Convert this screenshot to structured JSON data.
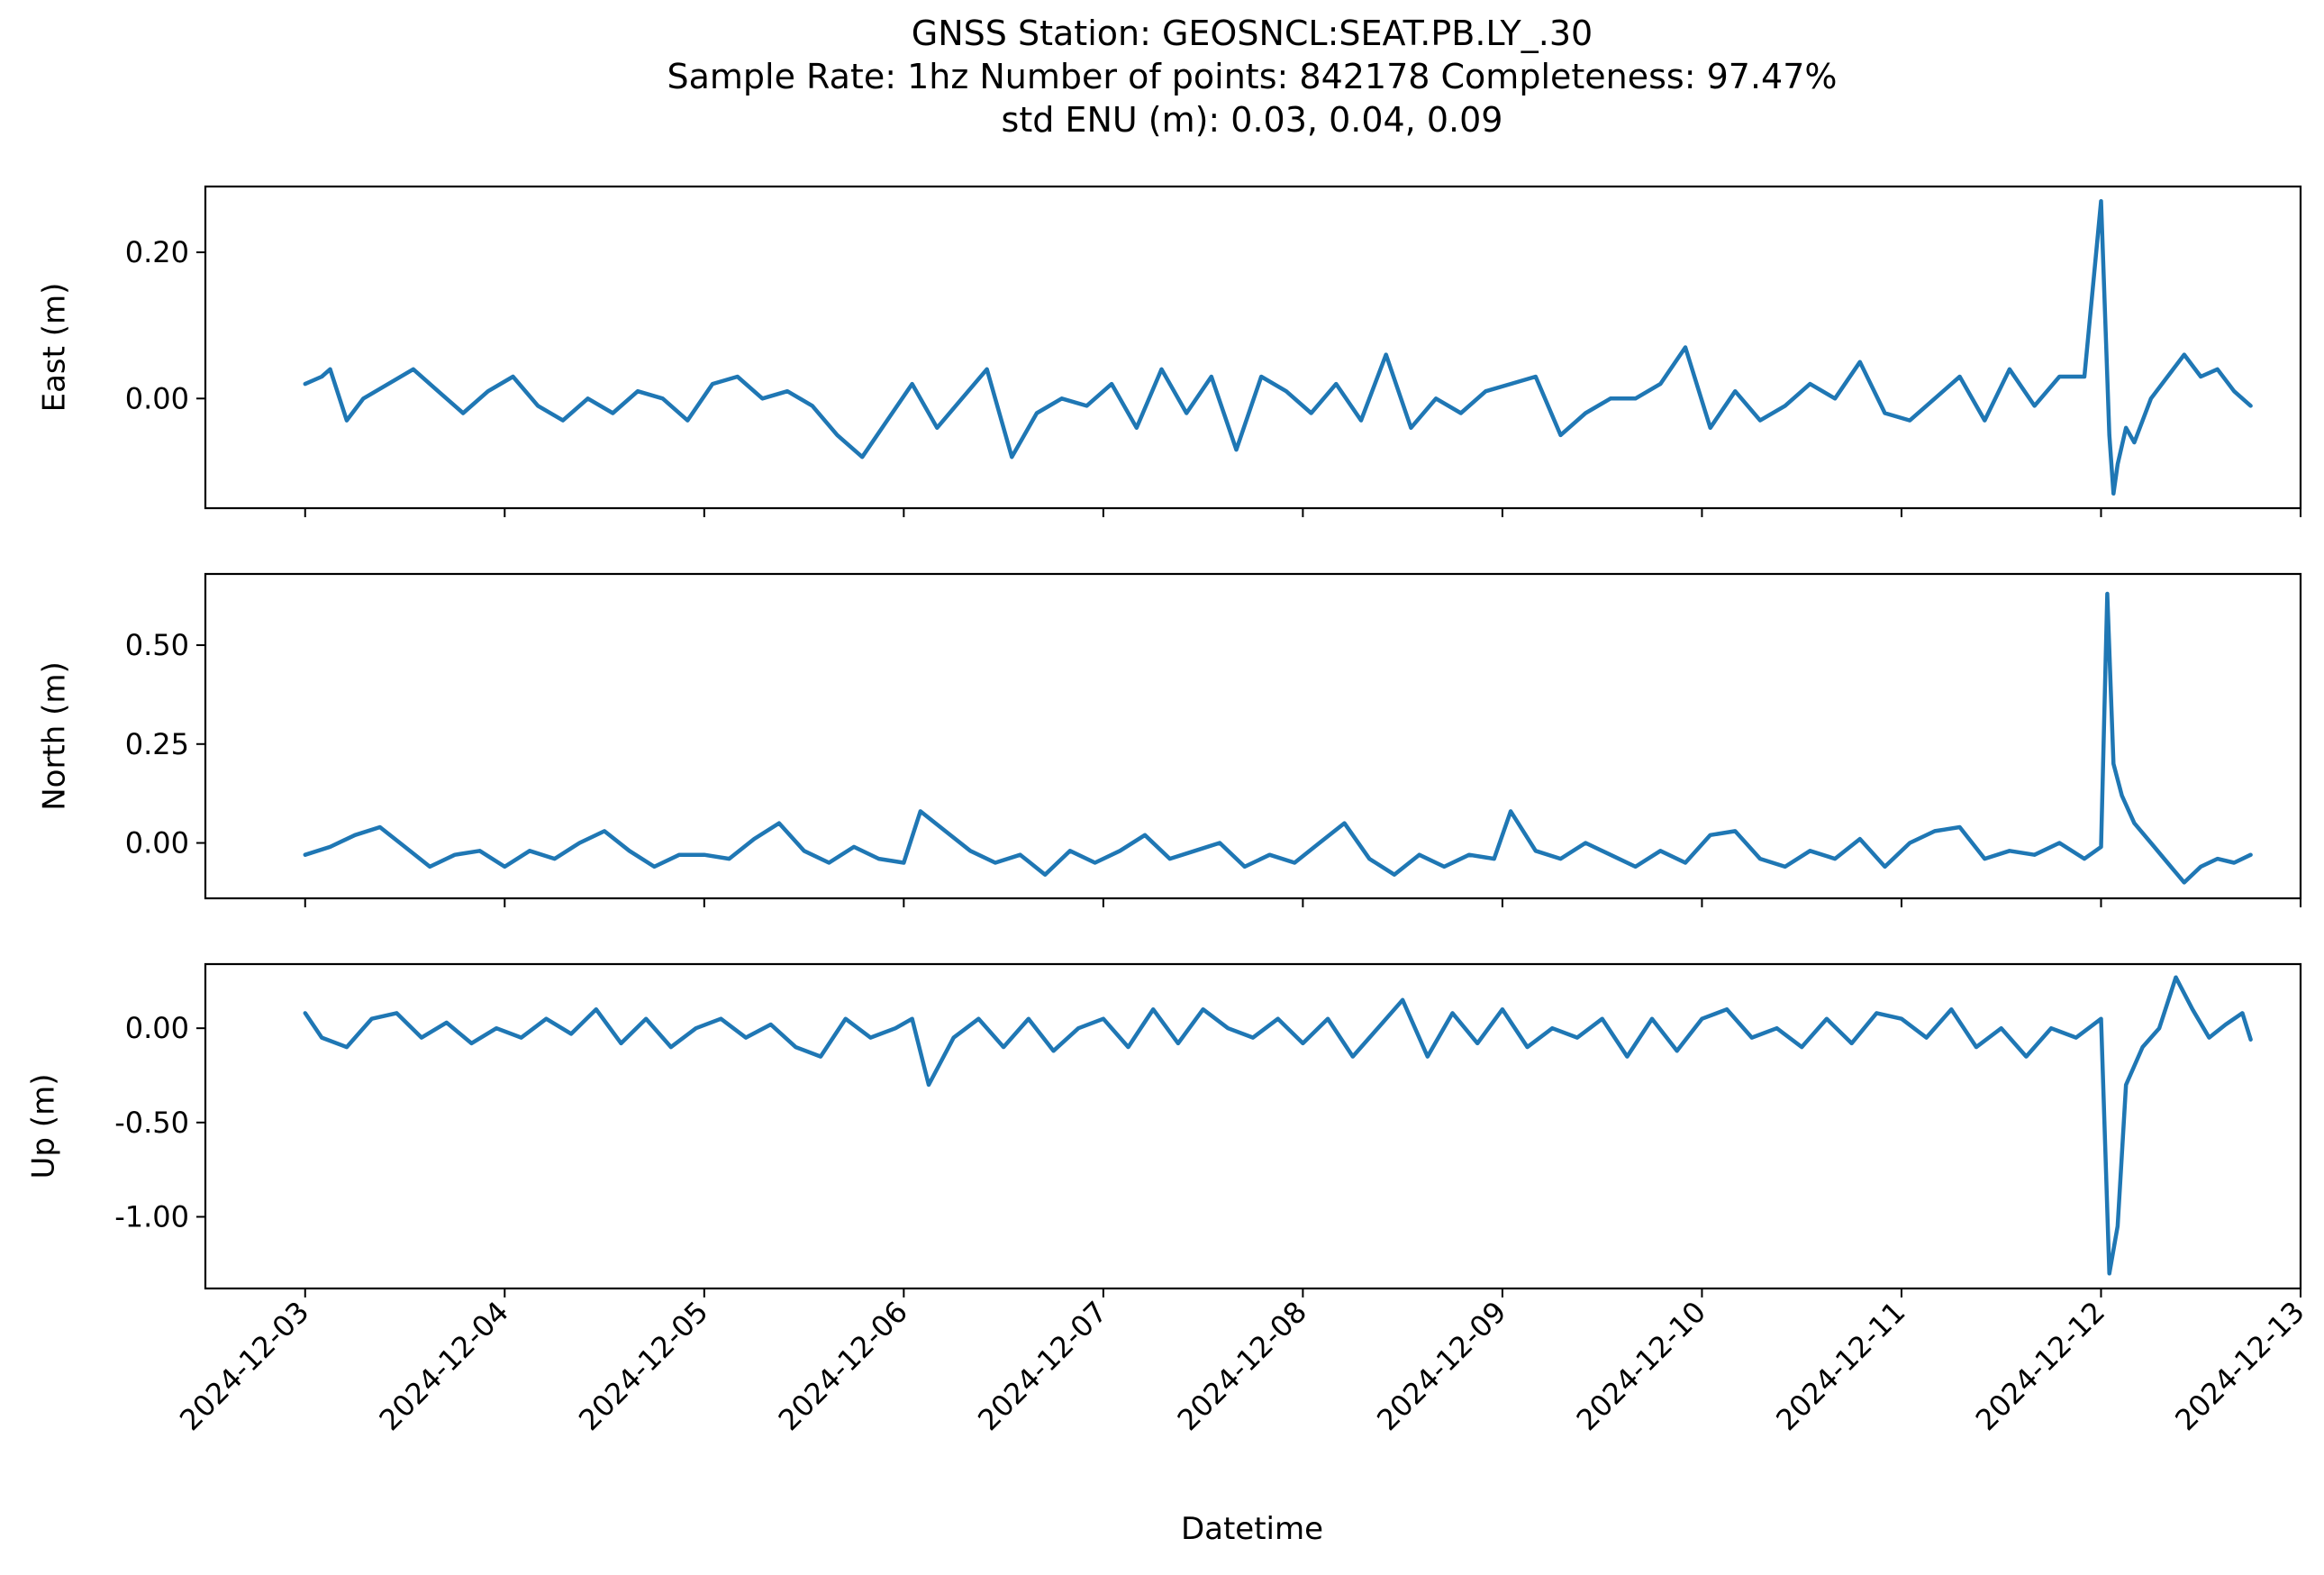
{
  "figure": {
    "title_lines": [
      "GNSS Station: GEOSNCL:SEAT.PB.LY_.30",
      "Sample Rate: 1hz   Number of points: 842178    Completeness:  97.47%",
      "std ENU (m):  0.03, 0.04, 0.09"
    ],
    "xlabel": "Datetime",
    "line_color": "#1f77b4"
  },
  "chart_data": [
    {
      "type": "line",
      "ylabel": "East (m)",
      "xlim": [
        "2024-12-02 12:00",
        "2024-12-13 00:00"
      ],
      "ylim": [
        -0.15,
        0.29
      ],
      "yticks": [
        0.0,
        0.2
      ],
      "ytick_labels": [
        "0.00",
        "0.20"
      ],
      "xticks": [
        "2024-12-03",
        "2024-12-04",
        "2024-12-05",
        "2024-12-06",
        "2024-12-07",
        "2024-12-08",
        "2024-12-09",
        "2024-12-10",
        "2024-12-11",
        "2024-12-12",
        "2024-12-13"
      ],
      "xtick_labels": [],
      "grid": false,
      "series": [
        {
          "x": [
            "2024-12-03 00:00",
            "2024-12-03 02:00",
            "2024-12-03 03:00",
            "2024-12-03 05:00",
            "2024-12-03 07:00",
            "2024-12-03 10:00",
            "2024-12-03 13:00",
            "2024-12-03 16:00",
            "2024-12-03 19:00",
            "2024-12-03 22:00",
            "2024-12-04 01:00",
            "2024-12-04 04:00",
            "2024-12-04 07:00",
            "2024-12-04 10:00",
            "2024-12-04 13:00",
            "2024-12-04 16:00",
            "2024-12-04 19:00",
            "2024-12-04 22:00",
            "2024-12-05 01:00",
            "2024-12-05 04:00",
            "2024-12-05 07:00",
            "2024-12-05 10:00",
            "2024-12-05 13:00",
            "2024-12-05 16:00",
            "2024-12-05 19:00",
            "2024-12-05 22:00",
            "2024-12-06 01:00",
            "2024-12-06 04:00",
            "2024-12-06 07:00",
            "2024-12-06 10:00",
            "2024-12-06 13:00",
            "2024-12-06 16:00",
            "2024-12-06 19:00",
            "2024-12-06 22:00",
            "2024-12-07 01:00",
            "2024-12-07 04:00",
            "2024-12-07 07:00",
            "2024-12-07 10:00",
            "2024-12-07 13:00",
            "2024-12-07 16:00",
            "2024-12-07 19:00",
            "2024-12-07 22:00",
            "2024-12-08 01:00",
            "2024-12-08 04:00",
            "2024-12-08 07:00",
            "2024-12-08 10:00",
            "2024-12-08 13:00",
            "2024-12-08 16:00",
            "2024-12-08 19:00",
            "2024-12-08 22:00",
            "2024-12-09 01:00",
            "2024-12-09 04:00",
            "2024-12-09 07:00",
            "2024-12-09 10:00",
            "2024-12-09 13:00",
            "2024-12-09 16:00",
            "2024-12-09 19:00",
            "2024-12-09 22:00",
            "2024-12-10 01:00",
            "2024-12-10 04:00",
            "2024-12-10 07:00",
            "2024-12-10 10:00",
            "2024-12-10 13:00",
            "2024-12-10 16:00",
            "2024-12-10 19:00",
            "2024-12-10 22:00",
            "2024-12-11 01:00",
            "2024-12-11 04:00",
            "2024-12-11 07:00",
            "2024-12-11 10:00",
            "2024-12-11 13:00",
            "2024-12-11 16:00",
            "2024-12-11 19:00",
            "2024-12-11 22:00",
            "2024-12-12 00:00",
            "2024-12-12 01:00",
            "2024-12-12 01:30",
            "2024-12-12 02:00",
            "2024-12-12 03:00",
            "2024-12-12 04:00",
            "2024-12-12 06:00",
            "2024-12-12 08:00",
            "2024-12-12 10:00",
            "2024-12-12 12:00",
            "2024-12-12 14:00",
            "2024-12-12 16:00",
            "2024-12-12 18:00"
          ],
          "y": [
            0.02,
            0.03,
            0.04,
            -0.03,
            0.0,
            0.02,
            0.04,
            0.01,
            -0.02,
            0.01,
            0.03,
            -0.01,
            -0.03,
            0.0,
            -0.02,
            0.01,
            0.0,
            -0.03,
            0.02,
            0.03,
            0.0,
            0.01,
            -0.01,
            -0.05,
            -0.08,
            -0.03,
            0.02,
            -0.04,
            0.0,
            0.04,
            -0.08,
            -0.02,
            0.0,
            -0.01,
            0.02,
            -0.04,
            0.04,
            -0.02,
            0.03,
            -0.07,
            0.03,
            0.01,
            -0.02,
            0.02,
            -0.03,
            0.06,
            -0.04,
            0.0,
            -0.02,
            0.01,
            0.02,
            0.03,
            -0.05,
            -0.02,
            0.0,
            0.0,
            0.02,
            0.07,
            -0.04,
            0.01,
            -0.03,
            -0.01,
            0.02,
            0.0,
            0.05,
            -0.02,
            -0.03,
            0.0,
            0.03,
            -0.03,
            0.04,
            -0.01,
            0.03,
            0.03,
            0.27,
            -0.05,
            -0.13,
            -0.09,
            -0.04,
            -0.06,
            0.0,
            0.03,
            0.06,
            0.03,
            0.04,
            0.01,
            -0.01
          ],
          "color": "#1f77b4"
        }
      ]
    },
    {
      "type": "line",
      "ylabel": "North (m)",
      "xlim": [
        "2024-12-02 12:00",
        "2024-12-13 00:00"
      ],
      "ylim": [
        -0.14,
        0.68
      ],
      "yticks": [
        0.0,
        0.25,
        0.5
      ],
      "ytick_labels": [
        "0.00",
        "0.25",
        "0.50"
      ],
      "xticks": [
        "2024-12-03",
        "2024-12-04",
        "2024-12-05",
        "2024-12-06",
        "2024-12-07",
        "2024-12-08",
        "2024-12-09",
        "2024-12-10",
        "2024-12-11",
        "2024-12-12",
        "2024-12-13"
      ],
      "xtick_labels": [],
      "grid": false,
      "series": [
        {
          "x": [
            "2024-12-03 00:00",
            "2024-12-03 03:00",
            "2024-12-03 06:00",
            "2024-12-03 09:00",
            "2024-12-03 12:00",
            "2024-12-03 15:00",
            "2024-12-03 18:00",
            "2024-12-03 21:00",
            "2024-12-04 00:00",
            "2024-12-04 03:00",
            "2024-12-04 06:00",
            "2024-12-04 09:00",
            "2024-12-04 12:00",
            "2024-12-04 15:00",
            "2024-12-04 18:00",
            "2024-12-04 21:00",
            "2024-12-05 00:00",
            "2024-12-05 03:00",
            "2024-12-05 06:00",
            "2024-12-05 09:00",
            "2024-12-05 12:00",
            "2024-12-05 15:00",
            "2024-12-05 18:00",
            "2024-12-05 21:00",
            "2024-12-06 00:00",
            "2024-12-06 02:00",
            "2024-12-06 05:00",
            "2024-12-06 08:00",
            "2024-12-06 11:00",
            "2024-12-06 14:00",
            "2024-12-06 17:00",
            "2024-12-06 20:00",
            "2024-12-06 23:00",
            "2024-12-07 02:00",
            "2024-12-07 05:00",
            "2024-12-07 08:00",
            "2024-12-07 11:00",
            "2024-12-07 14:00",
            "2024-12-07 17:00",
            "2024-12-07 20:00",
            "2024-12-07 23:00",
            "2024-12-08 02:00",
            "2024-12-08 05:00",
            "2024-12-08 08:00",
            "2024-12-08 11:00",
            "2024-12-08 14:00",
            "2024-12-08 17:00",
            "2024-12-08 20:00",
            "2024-12-08 23:00",
            "2024-12-09 01:00",
            "2024-12-09 04:00",
            "2024-12-09 07:00",
            "2024-12-09 10:00",
            "2024-12-09 13:00",
            "2024-12-09 16:00",
            "2024-12-09 19:00",
            "2024-12-09 22:00",
            "2024-12-10 01:00",
            "2024-12-10 04:00",
            "2024-12-10 07:00",
            "2024-12-10 10:00",
            "2024-12-10 13:00",
            "2024-12-10 16:00",
            "2024-12-10 19:00",
            "2024-12-10 22:00",
            "2024-12-11 01:00",
            "2024-12-11 04:00",
            "2024-12-11 07:00",
            "2024-12-11 10:00",
            "2024-12-11 13:00",
            "2024-12-11 16:00",
            "2024-12-11 19:00",
            "2024-12-11 22:00",
            "2024-12-12 00:00",
            "2024-12-12 00:45",
            "2024-12-12 01:30",
            "2024-12-12 02:30",
            "2024-12-12 04:00",
            "2024-12-12 06:00",
            "2024-12-12 08:00",
            "2024-12-12 10:00",
            "2024-12-12 12:00",
            "2024-12-12 14:00",
            "2024-12-12 16:00",
            "2024-12-12 18:00"
          ],
          "y": [
            -0.03,
            -0.01,
            0.02,
            0.04,
            -0.01,
            -0.06,
            -0.03,
            -0.02,
            -0.06,
            -0.02,
            -0.04,
            0.0,
            0.03,
            -0.02,
            -0.06,
            -0.03,
            -0.03,
            -0.04,
            0.01,
            0.05,
            -0.02,
            -0.05,
            -0.01,
            -0.04,
            -0.05,
            0.08,
            0.03,
            -0.02,
            -0.05,
            -0.03,
            -0.08,
            -0.02,
            -0.05,
            -0.02,
            0.02,
            -0.04,
            -0.02,
            0.0,
            -0.06,
            -0.03,
            -0.05,
            0.0,
            0.05,
            -0.04,
            -0.08,
            -0.03,
            -0.06,
            -0.03,
            -0.04,
            0.08,
            -0.02,
            -0.04,
            0.0,
            -0.03,
            -0.06,
            -0.02,
            -0.05,
            0.02,
            0.03,
            -0.04,
            -0.06,
            -0.02,
            -0.04,
            0.01,
            -0.06,
            0.0,
            0.03,
            0.04,
            -0.04,
            -0.02,
            -0.03,
            0.0,
            -0.04,
            -0.01,
            0.63,
            0.2,
            0.12,
            0.05,
            0.0,
            -0.05,
            -0.1,
            -0.06,
            -0.04,
            -0.05,
            -0.03
          ],
          "color": "#1f77b4"
        }
      ]
    },
    {
      "type": "line",
      "ylabel": "Up (m)",
      "xlim": [
        "2024-12-02 12:00",
        "2024-12-13 00:00"
      ],
      "ylim": [
        -1.38,
        0.34
      ],
      "yticks": [
        -1.0,
        -0.5,
        0.0
      ],
      "ytick_labels": [
        "-1.00",
        "-0.50",
        "0.00"
      ],
      "xticks": [
        "2024-12-03",
        "2024-12-04",
        "2024-12-05",
        "2024-12-06",
        "2024-12-07",
        "2024-12-08",
        "2024-12-09",
        "2024-12-10",
        "2024-12-11",
        "2024-12-12",
        "2024-12-13"
      ],
      "xtick_labels": [
        "2024-12-03",
        "2024-12-04",
        "2024-12-05",
        "2024-12-06",
        "2024-12-07",
        "2024-12-08",
        "2024-12-09",
        "2024-12-10",
        "2024-12-11",
        "2024-12-12",
        "2024-12-13"
      ],
      "grid": false,
      "series": [
        {
          "x": [
            "2024-12-03 00:00",
            "2024-12-03 02:00",
            "2024-12-03 05:00",
            "2024-12-03 08:00",
            "2024-12-03 11:00",
            "2024-12-03 14:00",
            "2024-12-03 17:00",
            "2024-12-03 20:00",
            "2024-12-03 23:00",
            "2024-12-04 02:00",
            "2024-12-04 05:00",
            "2024-12-04 08:00",
            "2024-12-04 11:00",
            "2024-12-04 14:00",
            "2024-12-04 17:00",
            "2024-12-04 20:00",
            "2024-12-04 23:00",
            "2024-12-05 02:00",
            "2024-12-05 05:00",
            "2024-12-05 08:00",
            "2024-12-05 11:00",
            "2024-12-05 14:00",
            "2024-12-05 17:00",
            "2024-12-05 20:00",
            "2024-12-05 23:00",
            "2024-12-06 01:00",
            "2024-12-06 03:00",
            "2024-12-06 06:00",
            "2024-12-06 09:00",
            "2024-12-06 12:00",
            "2024-12-06 15:00",
            "2024-12-06 18:00",
            "2024-12-06 21:00",
            "2024-12-07 00:00",
            "2024-12-07 03:00",
            "2024-12-07 06:00",
            "2024-12-07 09:00",
            "2024-12-07 12:00",
            "2024-12-07 15:00",
            "2024-12-07 18:00",
            "2024-12-07 21:00",
            "2024-12-08 00:00",
            "2024-12-08 03:00",
            "2024-12-08 06:00",
            "2024-12-08 09:00",
            "2024-12-08 12:00",
            "2024-12-08 15:00",
            "2024-12-08 18:00",
            "2024-12-08 21:00",
            "2024-12-09 00:00",
            "2024-12-09 03:00",
            "2024-12-09 06:00",
            "2024-12-09 09:00",
            "2024-12-09 12:00",
            "2024-12-09 15:00",
            "2024-12-09 18:00",
            "2024-12-09 21:00",
            "2024-12-10 00:00",
            "2024-12-10 03:00",
            "2024-12-10 06:00",
            "2024-12-10 09:00",
            "2024-12-10 12:00",
            "2024-12-10 15:00",
            "2024-12-10 18:00",
            "2024-12-10 21:00",
            "2024-12-11 00:00",
            "2024-12-11 03:00",
            "2024-12-11 06:00",
            "2024-12-11 09:00",
            "2024-12-11 12:00",
            "2024-12-11 15:00",
            "2024-12-11 18:00",
            "2024-12-11 21:00",
            "2024-12-12 00:00",
            "2024-12-12 01:00",
            "2024-12-12 02:00",
            "2024-12-12 03:00",
            "2024-12-12 05:00",
            "2024-12-12 07:00",
            "2024-12-12 09:00",
            "2024-12-12 11:00",
            "2024-12-12 13:00",
            "2024-12-12 15:00",
            "2024-12-12 17:00",
            "2024-12-12 18:00"
          ],
          "y": [
            0.08,
            -0.05,
            -0.1,
            0.05,
            0.08,
            -0.05,
            0.03,
            -0.08,
            0.0,
            -0.05,
            0.05,
            -0.03,
            0.1,
            -0.08,
            0.05,
            -0.1,
            0.0,
            0.05,
            -0.05,
            0.02,
            -0.1,
            -0.15,
            0.05,
            -0.05,
            0.0,
            0.05,
            -0.3,
            -0.05,
            0.05,
            -0.1,
            0.05,
            -0.12,
            0.0,
            0.05,
            -0.1,
            0.1,
            -0.08,
            0.1,
            0.0,
            -0.05,
            0.05,
            -0.08,
            0.05,
            -0.15,
            0.0,
            0.15,
            -0.15,
            0.08,
            -0.08,
            0.1,
            -0.1,
            0.0,
            -0.05,
            0.05,
            -0.15,
            0.05,
            -0.12,
            0.05,
            0.1,
            -0.05,
            0.0,
            -0.1,
            0.05,
            -0.08,
            0.08,
            0.05,
            -0.05,
            0.1,
            -0.1,
            0.0,
            -0.15,
            0.0,
            -0.05,
            0.05,
            -1.3,
            -1.05,
            -0.3,
            -0.1,
            0.0,
            0.27,
            0.1,
            -0.05,
            0.02,
            0.08,
            -0.06
          ],
          "color": "#1f77b4"
        }
      ]
    }
  ]
}
